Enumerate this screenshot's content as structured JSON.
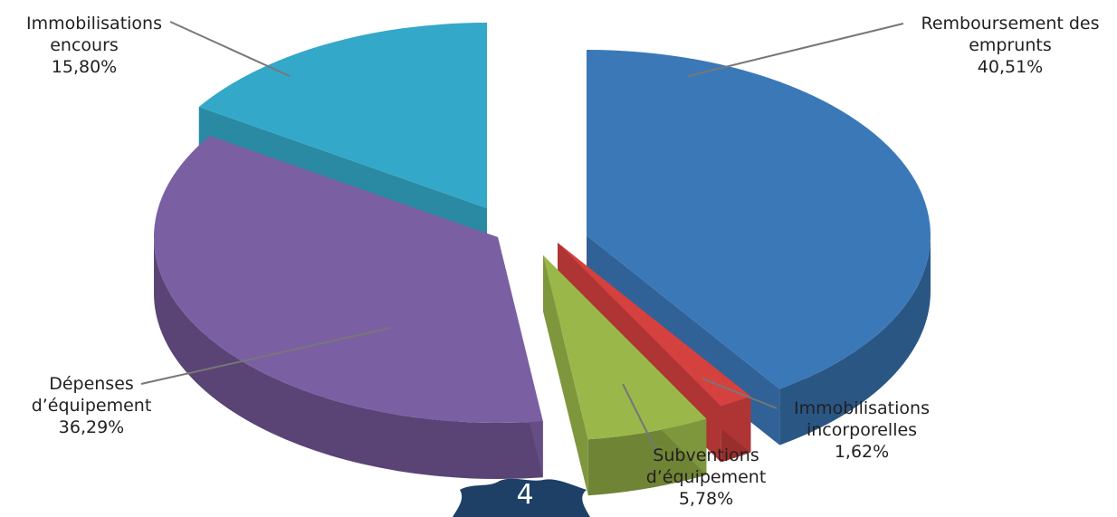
{
  "chart_data": {
    "type": "pie",
    "title": "",
    "slices": [
      {
        "name_lines": [
          "Remboursement des",
          "emprunts"
        ],
        "value": 40.51,
        "value_label": "40,51%",
        "color": "#3b78b8"
      },
      {
        "name_lines": [
          "Immobilisations",
          "incorporelles"
        ],
        "value": 1.62,
        "value_label": "1,62%",
        "color": "#d5413f"
      },
      {
        "name_lines": [
          "Subventions",
          "d’équipement"
        ],
        "value": 5.78,
        "value_label": "5,78%",
        "color": "#9ab84a"
      },
      {
        "name_lines": [
          "Dépenses",
          "d’équipement"
        ],
        "value": 36.29,
        "value_label": "36,29%",
        "color": "#7b5fa3"
      },
      {
        "name_lines": [
          "Immobilisations",
          "encours"
        ],
        "value": 15.8,
        "value_label": "15,80%",
        "color": "#33a8c8"
      }
    ],
    "style": "3d-exploded"
  },
  "page": {
    "number": "4",
    "badge_color": "#1e3f66"
  }
}
